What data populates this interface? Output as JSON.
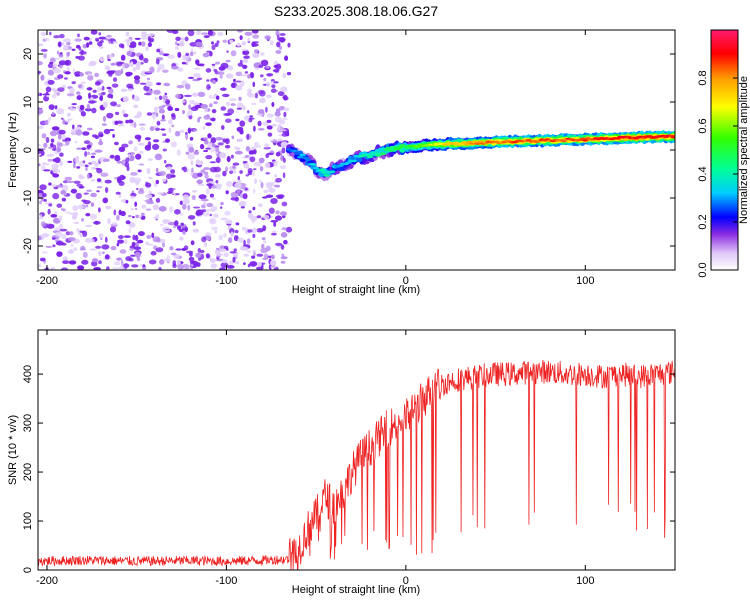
{
  "figure_title": "S233.2025.308.18.06.G27",
  "chart_data": [
    {
      "type": "heatmap",
      "title": "S233.2025.308.18.06.G27",
      "xlabel": "Height of straight line (km)",
      "ylabel": "Frequency (Hz)",
      "xlim": [
        -205,
        150
      ],
      "ylim": [
        -25,
        25
      ],
      "x_ticks": [
        -200,
        -100,
        0,
        100
      ],
      "y_ticks": [
        -20,
        -10,
        0,
        10,
        20
      ],
      "x_tick_labels": [
        "-200",
        "-100",
        "0",
        "100"
      ],
      "y_tick_labels": [
        "-20",
        "-10",
        "0",
        "10",
        "20"
      ],
      "colorbar": {
        "label": "Normalized spectral amplitude",
        "range": [
          0,
          1
        ],
        "ticks": [
          0,
          0.2,
          0.4,
          0.6,
          0.8
        ],
        "tick_labels": [
          "0.0",
          "0.2",
          "0.4",
          "0.6",
          "0.8"
        ]
      },
      "noise_region": {
        "x_range": [
          -205,
          -65
        ],
        "freq_range": [
          -25,
          25
        ],
        "typical_amplitude": 0.15
      },
      "signal_track": {
        "x": [
          -65,
          -60,
          -55,
          -50,
          -45,
          -40,
          -35,
          -30,
          -20,
          -10,
          0,
          10,
          20,
          40,
          60,
          80,
          100,
          120,
          150
        ],
        "frequency": [
          0,
          -1,
          -2,
          -4,
          -5,
          -4,
          -3,
          -2,
          -1,
          0,
          0.5,
          1,
          1.2,
          1.5,
          1.8,
          2,
          2.2,
          2.5,
          2.8
        ],
        "amplitude": [
          0.25,
          0.3,
          0.3,
          0.35,
          0.4,
          0.35,
          0.3,
          0.35,
          0.4,
          0.45,
          0.5,
          0.6,
          0.7,
          0.8,
          0.85,
          0.85,
          0.85,
          0.9,
          0.9
        ]
      }
    },
    {
      "type": "line",
      "xlabel": "Height of straight line (km)",
      "ylabel": "SNR (10 * v/v)",
      "xlim": [
        -205,
        150
      ],
      "ylim": [
        0,
        490
      ],
      "x_ticks": [
        -200,
        -100,
        0,
        100
      ],
      "y_ticks": [
        0,
        100,
        200,
        300,
        400
      ],
      "x_tick_labels": [
        "-200",
        "-100",
        "0",
        "100"
      ],
      "y_tick_labels": [
        "0",
        "100",
        "200",
        "300",
        "400"
      ],
      "series": [
        {
          "name": "SNR",
          "color": "#ee2222",
          "x": [
            -205,
            -180,
            -150,
            -120,
            -100,
            -80,
            -65,
            -60,
            -55,
            -50,
            -45,
            -40,
            -35,
            -30,
            -25,
            -20,
            -15,
            -10,
            -5,
            0,
            5,
            10,
            15,
            20,
            30,
            40,
            50,
            60,
            70,
            80,
            90,
            100,
            110,
            120,
            130,
            140,
            150
          ],
          "values": [
            18,
            20,
            18,
            19,
            18,
            20,
            22,
            40,
            80,
            110,
            150,
            130,
            160,
            200,
            230,
            250,
            270,
            290,
            300,
            310,
            330,
            350,
            370,
            380,
            390,
            395,
            400,
            400,
            405,
            405,
            400,
            400,
            395,
            400,
            395,
            400,
            405
          ]
        }
      ]
    }
  ]
}
